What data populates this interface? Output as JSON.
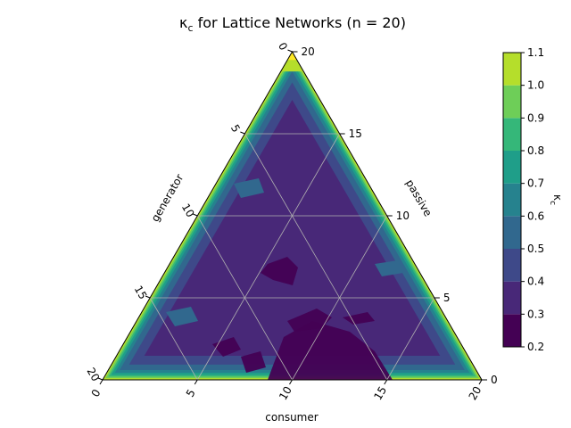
{
  "chart_data": {
    "type": "ternary-contour",
    "title": "κc for Lattice Networks (n = 20)",
    "title_main": "κ",
    "title_sub": "c",
    "title_rest": " for Lattice Networks (n = 20)",
    "axes": {
      "bottom": {
        "label": "consumer",
        "ticks": [
          "0",
          "5",
          "10",
          "15",
          "20"
        ]
      },
      "left": {
        "label": "generator",
        "ticks": [
          "0",
          "5",
          "10",
          "15",
          "20"
        ]
      },
      "right": {
        "label": "passive",
        "ticks": [
          "0",
          "5",
          "10",
          "15",
          "20"
        ]
      },
      "range": [
        0,
        20
      ]
    },
    "grid": true,
    "colorbar": {
      "label": "κc",
      "label_main": "κ",
      "label_sub": "c",
      "ticks": [
        "0.2",
        "0.3",
        "0.4",
        "0.5",
        "0.6",
        "0.7",
        "0.8",
        "0.9",
        "1.0",
        "1.1"
      ],
      "levels": [
        0.2,
        0.3,
        0.4,
        0.5,
        0.6,
        0.7,
        0.8,
        0.9,
        1.0,
        1.1
      ],
      "colors": [
        "#440154",
        "#482878",
        "#3e4989",
        "#31688e",
        "#26828e",
        "#1f9e89",
        "#35b779",
        "#6ece58",
        "#b5de2b",
        "#fde725"
      ],
      "placement": "right"
    },
    "description_values": {
      "interior_typical": 0.38,
      "near_edges": [
        0.5,
        0.7,
        0.9
      ],
      "at_edges": 1.0,
      "top_vertex": 1.1,
      "bottom_center_min": 0.25
    }
  }
}
